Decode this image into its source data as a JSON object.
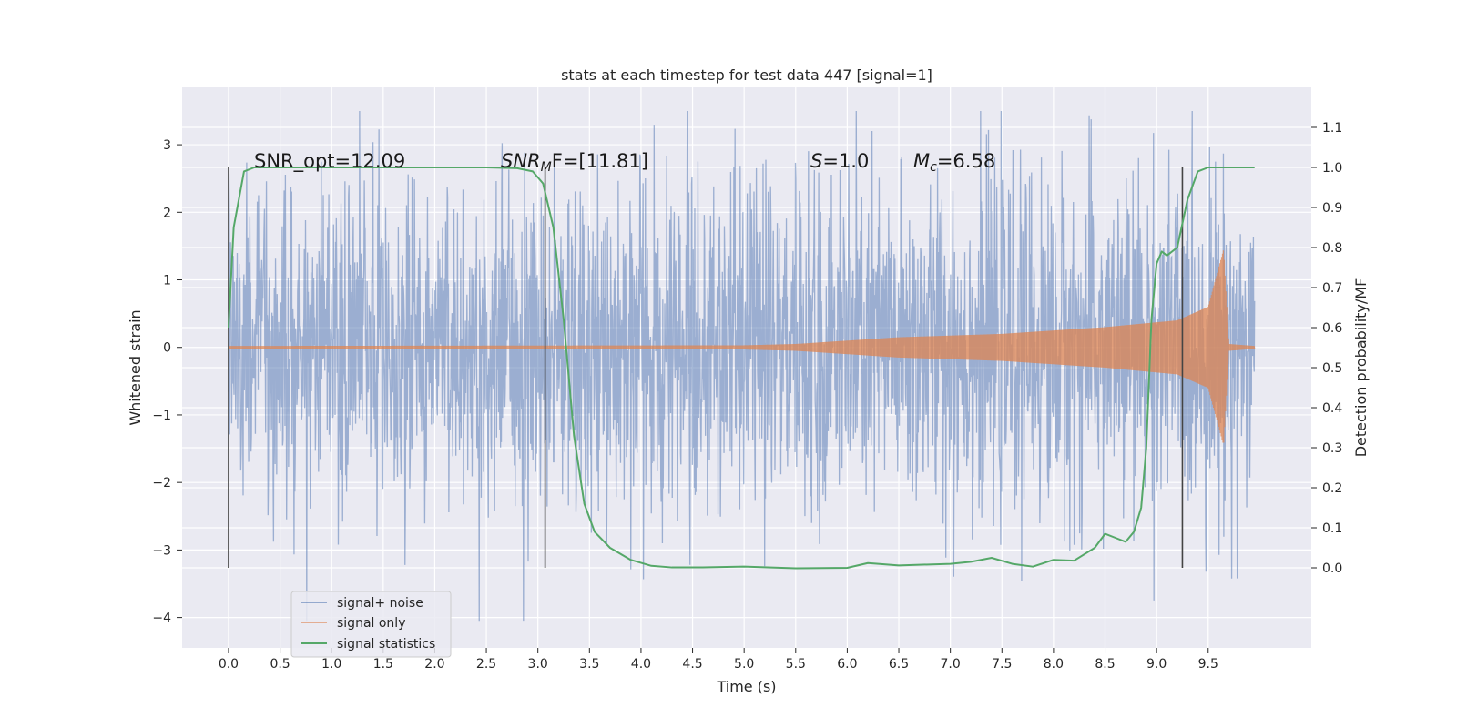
{
  "chart_data": {
    "type": "line",
    "title": "stats at each timestep for test data 447 [signal=1]",
    "xlabel": "Time (s)",
    "ylabel_left": "Whitened strain",
    "ylabel_right": "Detection probability/MF",
    "xlim": [
      -0.45,
      10.5
    ],
    "ylim_left": [
      -4.45,
      3.85
    ],
    "ylim_right": [
      -0.2,
      1.2
    ],
    "x_ticks": [
      "0.0",
      "0.5",
      "1.0",
      "1.5",
      "2.0",
      "2.5",
      "3.0",
      "3.5",
      "4.0",
      "4.5",
      "5.0",
      "5.5",
      "6.0",
      "6.5",
      "7.0",
      "7.5",
      "8.0",
      "8.5",
      "9.0",
      "9.5"
    ],
    "x_tick_values": [
      0,
      0.5,
      1,
      1.5,
      2,
      2.5,
      3,
      3.5,
      4,
      4.5,
      5,
      5.5,
      6,
      6.5,
      7,
      7.5,
      8,
      8.5,
      9,
      9.5
    ],
    "y_left_ticks": [
      "3",
      "2",
      "1",
      "0",
      "−1",
      "−2",
      "−3",
      "−4"
    ],
    "y_left_tick_values": [
      3,
      2,
      1,
      0,
      -1,
      -2,
      -3,
      -4
    ],
    "y_right_ticks": [
      "1.1",
      "1.0",
      "0.9",
      "0.8",
      "0.7",
      "0.6",
      "0.5",
      "0.4",
      "0.3",
      "0.2",
      "0.1",
      "0.0"
    ],
    "y_right_tick_values": [
      1.1,
      1.0,
      0.9,
      0.8,
      0.7,
      0.6,
      0.5,
      0.4,
      0.3,
      0.2,
      0.1,
      0.0
    ],
    "grid": true,
    "legend_placement": "lower-left",
    "annotations": {
      "snr_opt": "SNR_opt=12.09",
      "snr_mf_base": "SNR",
      "snr_mf_sub": "M",
      "snr_mf_rest": "F=[11.81]",
      "s_base": "S",
      "s_rest": "=1.0",
      "mc_base": "M",
      "mc_sub": "c",
      "mc_rest": "=6.58"
    },
    "vertical_markers": [
      0.0,
      3.07,
      9.25
    ],
    "series": [
      {
        "name": "signal+ noise",
        "axis": "left",
        "color": "#4c72b0",
        "x_range": [
          0.0,
          9.95
        ],
        "envelope": {
          "typical_abs": 2.0,
          "peak_max": 3.5,
          "peak_min": -4.05
        }
      },
      {
        "name": "signal only",
        "axis": "left",
        "color": "#dd8452",
        "x_range": [
          0.0,
          9.95
        ],
        "amplitude_points": [
          {
            "x": 0.0,
            "a": 0.02
          },
          {
            "x": 5.0,
            "a": 0.03
          },
          {
            "x": 5.5,
            "a": 0.05
          },
          {
            "x": 6.5,
            "a": 0.15
          },
          {
            "x": 7.5,
            "a": 0.2
          },
          {
            "x": 8.5,
            "a": 0.3
          },
          {
            "x": 9.2,
            "a": 0.4
          },
          {
            "x": 9.5,
            "a": 0.6
          },
          {
            "x": 9.65,
            "a": 1.45
          },
          {
            "x": 9.7,
            "a": 0.05
          },
          {
            "x": 9.95,
            "a": 0.02
          }
        ]
      },
      {
        "name": "signal statistics",
        "axis": "right",
        "color": "#55a868",
        "x": [
          0.0,
          0.05,
          0.1,
          0.15,
          0.25,
          0.4,
          1.0,
          2.0,
          2.5,
          2.8,
          2.95,
          3.05,
          3.15,
          3.25,
          3.35,
          3.45,
          3.55,
          3.7,
          3.9,
          4.1,
          4.3,
          4.6,
          5.0,
          5.5,
          6.0,
          6.2,
          6.5,
          7.0,
          7.2,
          7.4,
          7.6,
          7.8,
          8.0,
          8.2,
          8.4,
          8.5,
          8.6,
          8.7,
          8.78,
          8.85,
          8.9,
          8.95,
          9.0,
          9.05,
          9.1,
          9.2,
          9.3,
          9.4,
          9.5,
          9.6,
          9.95
        ],
        "values": [
          0.6,
          0.85,
          0.92,
          0.99,
          1.0,
          1.0,
          1.0,
          1.0,
          1.0,
          0.998,
          0.99,
          0.96,
          0.85,
          0.62,
          0.33,
          0.16,
          0.09,
          0.05,
          0.02,
          0.005,
          0.001,
          0.001,
          0.003,
          -0.001,
          0.0,
          0.012,
          0.006,
          0.01,
          0.015,
          0.025,
          0.01,
          0.003,
          0.02,
          0.018,
          0.05,
          0.085,
          0.075,
          0.065,
          0.09,
          0.15,
          0.3,
          0.62,
          0.76,
          0.79,
          0.78,
          0.8,
          0.92,
          0.99,
          1.0,
          1.0,
          1.0
        ]
      }
    ]
  }
}
